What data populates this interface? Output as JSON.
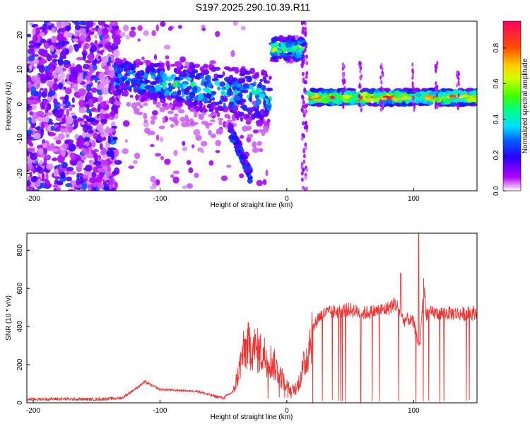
{
  "title": "S197.2025.290.10.39.R11",
  "chart_data": [
    {
      "type": "heatmap",
      "xlabel": "Height of straight line (km)",
      "ylabel": "Frequency (Hz)",
      "xlim": [
        -205,
        150
      ],
      "ylim": [
        -25,
        24
      ],
      "xticks": [
        -200,
        -100,
        0,
        100
      ],
      "yticks": [
        -20,
        -10,
        0,
        10,
        20
      ],
      "colorbar": {
        "label": "Normalized spectral amplitude",
        "range": [
          0.0,
          0.95
        ],
        "ticks": [
          "0.0",
          "0.2",
          "0.4",
          "0.6",
          "0.8"
        ],
        "tick_values": [
          0.0,
          0.2,
          0.4,
          0.6,
          0.8
        ]
      },
      "features": [
        {
          "name": "strong-band",
          "x_start": 18,
          "x_end": 150,
          "freq_center": 2,
          "peak": 0.9
        },
        {
          "name": "upper-blob",
          "x_start": -12,
          "x_end": 14,
          "freq_center": 16,
          "peak": 0.6
        },
        {
          "name": "descending-streak",
          "x_start": -135,
          "x_end": -15,
          "freq_start": 8,
          "freq_end": 2,
          "peak": 0.5
        },
        {
          "name": "noise-region",
          "x_start": -205,
          "x_end": -135,
          "peak": 0.2
        }
      ]
    },
    {
      "type": "line",
      "xlabel": "Height of straight line (km)",
      "ylabel": "SNR (10 * v/v)",
      "xlim": [
        -205,
        150
      ],
      "ylim": [
        0,
        890
      ],
      "xticks": [
        -200,
        -100,
        0,
        100
      ],
      "yticks": [
        0,
        200,
        400,
        600,
        800
      ],
      "series": [
        {
          "name": "SNR",
          "color": "#ee3333",
          "x": [
            -205,
            -180,
            -150,
            -130,
            -118,
            -112,
            -100,
            -85,
            -70,
            -60,
            -50,
            -42,
            -38,
            -35,
            -32,
            -28,
            -25,
            -20,
            -15,
            -10,
            -5,
            0,
            3,
            8,
            12,
            16,
            20,
            25,
            30,
            40,
            50,
            60,
            70,
            80,
            85,
            88,
            92,
            96,
            100,
            103,
            105,
            108,
            110,
            115,
            120,
            130,
            140,
            150
          ],
          "values": [
            18,
            20,
            18,
            25,
            80,
            110,
            70,
            65,
            60,
            40,
            25,
            60,
            160,
            250,
            290,
            300,
            280,
            260,
            240,
            200,
            140,
            90,
            60,
            80,
            160,
            250,
            380,
            450,
            470,
            480,
            490,
            470,
            480,
            495,
            520,
            500,
            430,
            440,
            420,
            330,
            300,
            620,
            470,
            470,
            470,
            470,
            465,
            475
          ]
        }
      ]
    }
  ]
}
